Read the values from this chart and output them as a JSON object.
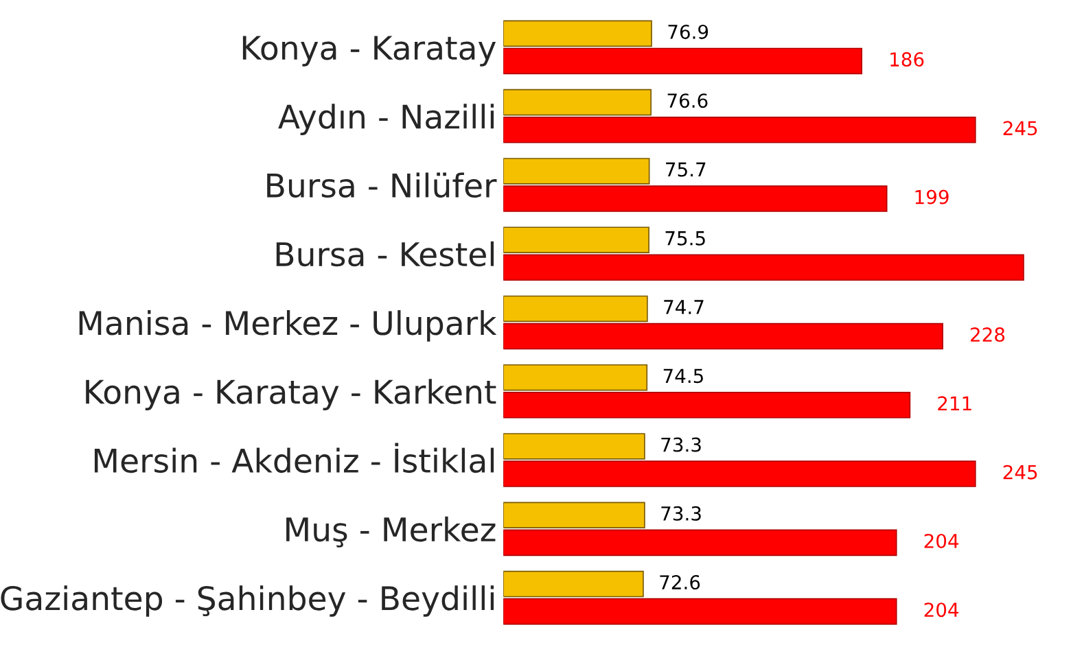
{
  "chart_data": {
    "type": "bar",
    "orientation": "horizontal",
    "tick_labels": "y",
    "grid": false,
    "legend": false,
    "categories": [
      "Konya - Karatay",
      "Aydın - Nazilli",
      "Bursa - Nilüfer",
      "Bursa - Kestel",
      "Manisa - Merkez - Ulupark",
      "Konya - Karatay - Karkent",
      "Mersin - Akdeniz - İstiklal",
      "Muş - Merkez",
      "Gaziantep - Şahinbey - Beydilli"
    ],
    "series": [
      {
        "color": "#f5c000",
        "values": [
          76.9,
          76.6,
          75.7,
          75.5,
          74.7,
          74.5,
          73.3,
          73.3,
          72.6
        ],
        "value_labels": [
          "76.9",
          "76.6",
          "75.7",
          "75.5",
          "74.7",
          "74.5",
          "73.3",
          "73.3",
          "72.6"
        ]
      },
      {
        "color": "#ff0000",
        "values": [
          186,
          245,
          199,
          270,
          228,
          211,
          245,
          204,
          204
        ],
        "value_labels": [
          "186",
          "245",
          "199",
          null,
          "228",
          "211",
          "245",
          "204",
          "204"
        ]
      }
    ]
  }
}
